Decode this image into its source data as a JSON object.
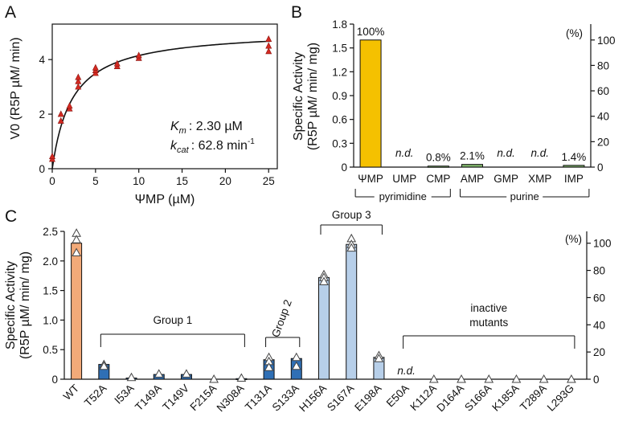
{
  "colors": {
    "red": "#d42a22",
    "orange_bar": "#f5c100",
    "green_bar": "#7fb56b",
    "salmon": "#f2aa79",
    "blue_dark": "#2f6fb5",
    "blue_light": "#b7cfe9",
    "axis": "#111111"
  },
  "chart_data": [
    {
      "panel": "A",
      "type": "scatter",
      "title": "",
      "xlabel": "ΨMP (µM)",
      "ylabel": "V0 (R5P µM/ min)",
      "xlim": [
        0,
        26
      ],
      "ylim": [
        0,
        5.3
      ],
      "xticks": [
        "0",
        "5",
        "10",
        "15",
        "20",
        "25"
      ],
      "yticks": [
        "0",
        "2",
        "4"
      ],
      "points": [
        {
          "x": 0,
          "y": 0.35
        },
        {
          "x": 0,
          "y": 0.45
        },
        {
          "x": 1,
          "y": 1.75
        },
        {
          "x": 1,
          "y": 2.0
        },
        {
          "x": 2,
          "y": 2.2
        },
        {
          "x": 2,
          "y": 2.3
        },
        {
          "x": 3,
          "y": 3.0
        },
        {
          "x": 3,
          "y": 3.2
        },
        {
          "x": 3,
          "y": 3.35
        },
        {
          "x": 5,
          "y": 3.5
        },
        {
          "x": 5,
          "y": 3.6
        },
        {
          "x": 5,
          "y": 3.7
        },
        {
          "x": 7.5,
          "y": 3.75
        },
        {
          "x": 7.5,
          "y": 3.85
        },
        {
          "x": 10,
          "y": 4.05
        },
        {
          "x": 10,
          "y": 4.15
        },
        {
          "x": 25,
          "y": 4.3
        },
        {
          "x": 25,
          "y": 4.5
        },
        {
          "x": 25,
          "y": 4.75
        }
      ],
      "fit": {
        "Vmax": 5.1,
        "Km": 2.3
      },
      "annotation": {
        "km_symbol": "K",
        "km_sub": "m",
        "km_value": ": 2.30 µM",
        "kcat_symbol": "k",
        "kcat_sub": "cat",
        "kcat_value": ": 62.8 min",
        "kcat_sup": "-1"
      }
    },
    {
      "panel": "B",
      "type": "bar",
      "title": "",
      "ylabel": "Specific Activity (R5P µM/ min/ mg)",
      "ylabel_line1": "Specific Activity",
      "ylabel_line2": "(R5P µM/ min/ mg)",
      "y2label": "(%)",
      "categories": [
        "ΨMP",
        "UMP",
        "CMP",
        "AMP",
        "GMP",
        "XMP",
        "IMP"
      ],
      "values": [
        1.6,
        0,
        0.013,
        0.034,
        0,
        0,
        0.022
      ],
      "labels": [
        "100%",
        "n.d.",
        "0.8%",
        "2.1%",
        "n.d.",
        "n.d.",
        "1.4%"
      ],
      "ylim": [
        0,
        1.8
      ],
      "yticks": [
        "0",
        "0.3",
        "0.6",
        "0.9",
        "1.2",
        "1.5",
        "1.8"
      ],
      "y2ticks": [
        "0",
        "20",
        "40",
        "60",
        "80",
        "100"
      ],
      "groups": [
        {
          "name": "pyrimidine",
          "from": 0,
          "to": 2
        },
        {
          "name": "purine",
          "from": 3,
          "to": 6
        }
      ]
    },
    {
      "panel": "C",
      "type": "bar",
      "title": "",
      "ylabel": "Specific Activity (R5P µM/ min/ mg)",
      "ylabel_line1": "Specific Activity",
      "ylabel_line2": "(R5P µM/ min/ mg)",
      "y2label": "(%)",
      "categories": [
        "WT",
        "T52A",
        "I53A",
        "T149A",
        "T149V",
        "F215A",
        "N308A",
        "T131A",
        "S133A",
        "H156A",
        "S167A",
        "E198A",
        "E50A",
        "K112A",
        "D164A",
        "S166A",
        "K185A",
        "T289A",
        "L293G"
      ],
      "values": [
        2.3,
        0.25,
        0.02,
        0.08,
        0.08,
        0,
        0.01,
        0.33,
        0.35,
        1.72,
        2.28,
        0.37,
        0,
        0,
        0,
        0,
        0,
        0,
        0
      ],
      "replicates": [
        [
          2.47,
          2.36,
          2.14
        ],
        [
          0.25,
          0.22
        ],
        [
          0.03
        ],
        [
          0.09
        ],
        [
          0.09
        ],
        [
          0.0
        ],
        [
          0.02
        ],
        [
          0.37,
          0.3,
          0.2
        ],
        [
          0.37,
          0.22
        ],
        [
          1.77,
          1.72,
          1.65
        ],
        [
          2.38,
          2.28,
          2.22
        ],
        [
          0.4,
          0.35
        ],
        [],
        [
          0.0
        ],
        [
          0.0
        ],
        [
          0.0
        ],
        [
          0.0
        ],
        [
          0.0
        ],
        [
          0.0
        ]
      ],
      "ylim": [
        0,
        2.5
      ],
      "yticks": [
        "0",
        "0.5",
        "1.0",
        "1.5",
        "2.0",
        "2.5"
      ],
      "y2ticks": [
        "0",
        "20",
        "40",
        "60",
        "80",
        "100"
      ],
      "nd_label": "n.d.",
      "nd_index": 12,
      "groups": [
        {
          "name": "Group 1",
          "from": 1,
          "to": 6
        },
        {
          "name": "Group 2",
          "from": 7,
          "to": 8
        },
        {
          "name": "Group 3",
          "from": 9,
          "to": 11
        },
        {
          "name_line1": "inactive",
          "name_line2": "mutants",
          "from": 12,
          "to": 18
        }
      ]
    }
  ]
}
